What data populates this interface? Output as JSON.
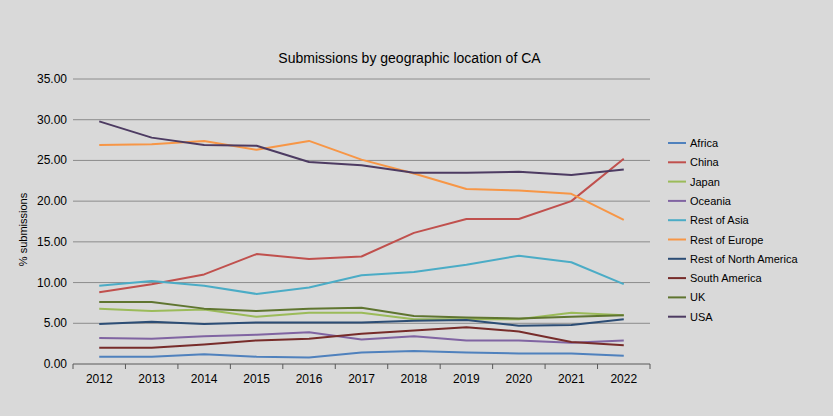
{
  "chart_data": {
    "type": "line",
    "title": "Submissions by geographic location of CA",
    "y_label": "% submissions",
    "categories": [
      "2012",
      "2013",
      "2014",
      "2015",
      "2016",
      "2017",
      "2018",
      "2019",
      "2020",
      "2021",
      "2022"
    ],
    "ylim": [
      0,
      35
    ],
    "yticks": [
      {
        "value": 0,
        "label": "0.00"
      },
      {
        "value": 5,
        "label": "5.00"
      },
      {
        "value": 10,
        "label": "10.00"
      },
      {
        "value": 15,
        "label": "15.00"
      },
      {
        "value": 20,
        "label": "20.00"
      },
      {
        "value": 25,
        "label": "25.00"
      },
      {
        "value": 30,
        "label": "30.00"
      },
      {
        "value": 35,
        "label": "35.00"
      }
    ],
    "grid": true,
    "legend": "right",
    "series": [
      {
        "name": "Africa",
        "color": "#4f81bd",
        "values": [
          0.9,
          0.9,
          1.2,
          0.9,
          0.8,
          1.4,
          1.6,
          1.4,
          1.3,
          1.3,
          1.0
        ]
      },
      {
        "name": "China",
        "color": "#c0504d",
        "values": [
          8.8,
          9.8,
          11.0,
          13.5,
          12.9,
          13.2,
          16.1,
          17.8,
          17.8,
          20.0,
          25.2
        ]
      },
      {
        "name": "Japan",
        "color": "#9bbb59",
        "values": [
          6.8,
          6.5,
          6.7,
          5.8,
          6.3,
          6.3,
          5.5,
          5.5,
          5.5,
          6.3,
          6.0
        ]
      },
      {
        "name": "Oceania",
        "color": "#8064a2",
        "values": [
          3.2,
          3.1,
          3.4,
          3.6,
          3.9,
          3.0,
          3.4,
          2.9,
          2.9,
          2.6,
          2.9
        ]
      },
      {
        "name": "Rest of Asia",
        "color": "#4bacc6",
        "values": [
          9.6,
          10.2,
          9.6,
          8.6,
          9.4,
          10.9,
          11.3,
          12.2,
          13.3,
          12.5,
          9.8
        ]
      },
      {
        "name": "Rest of Europe",
        "color": "#f79646",
        "values": [
          26.9,
          27.0,
          27.4,
          26.3,
          27.4,
          25.1,
          23.4,
          21.5,
          21.3,
          20.9,
          17.7
        ]
      },
      {
        "name": "Rest of North America",
        "color": "#2c4d75",
        "values": [
          4.9,
          5.2,
          4.9,
          5.1,
          5.1,
          5.1,
          5.3,
          5.4,
          4.7,
          4.8,
          5.5
        ]
      },
      {
        "name": "South America",
        "color": "#772c2a",
        "values": [
          2.0,
          2.0,
          2.4,
          2.9,
          3.1,
          3.7,
          4.1,
          4.5,
          4.0,
          2.7,
          2.3
        ]
      },
      {
        "name": "UK",
        "color": "#5f7530",
        "values": [
          7.6,
          7.6,
          6.8,
          6.5,
          6.8,
          6.9,
          5.9,
          5.7,
          5.6,
          5.8,
          6.0
        ]
      },
      {
        "name": "USA",
        "color": "#4d3b62",
        "values": [
          29.8,
          27.8,
          26.9,
          26.8,
          24.8,
          24.4,
          23.5,
          23.5,
          23.6,
          23.2,
          23.9
        ]
      }
    ]
  }
}
